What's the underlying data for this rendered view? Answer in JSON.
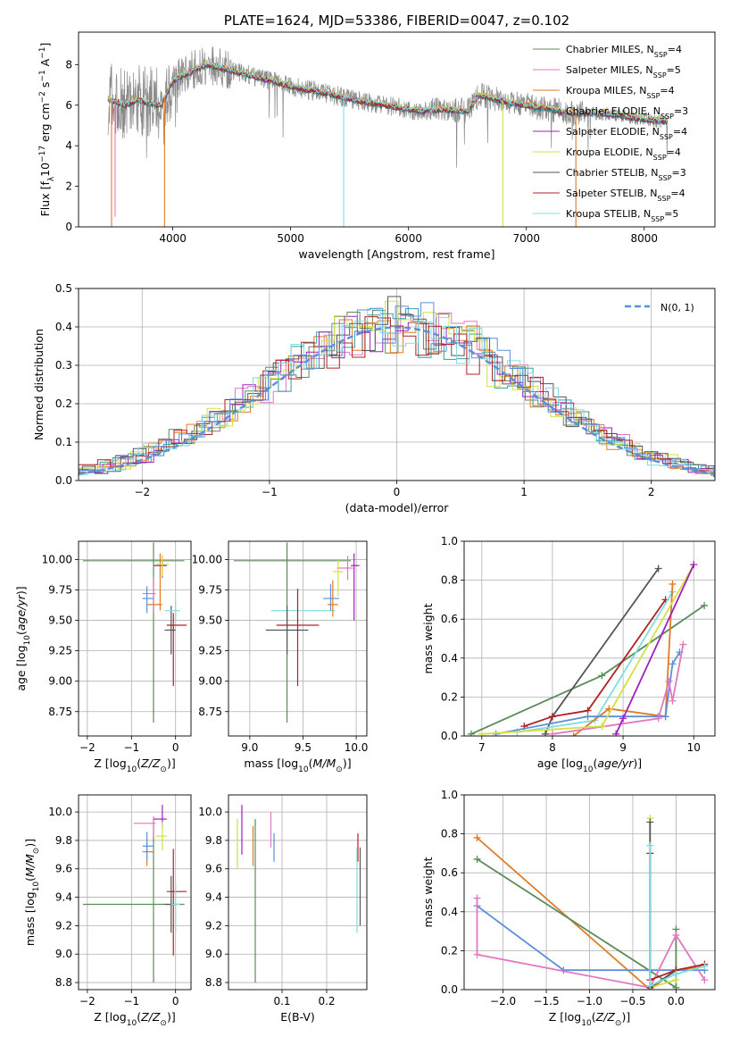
{
  "colors": {
    "Chabrier MILES": "#5b8c5a",
    "Salpeter MILES": "#e377c2",
    "Kroupa MILES": "#e07b24",
    "Chabrier ELODIE": "#2ca0a0",
    "Salpeter ELODIE": "#a020c0",
    "Kroupa ELODIE": "#d4e040",
    "Chabrier STELIB": "#555555",
    "Salpeter STELIB": "#b02020",
    "Kroupa STELIB": "#7fdde0",
    "blue": "#5b8fd9"
  },
  "chart_data": [
    {
      "id": "spectrum",
      "type": "line",
      "title": "PLATE=1624, MJD=53386, FIBERID=0047, z=0.102",
      "xlabel": "wavelength [Angstrom, rest frame]",
      "ylabel": "Flux [f_λ 10⁻¹⁷ erg cm⁻² s⁻¹ A⁻¹]",
      "xlim": [
        3200,
        8600
      ],
      "ylim": [
        0,
        9.6
      ],
      "xticks": [
        "4000",
        "5000",
        "6000",
        "7000",
        "8000"
      ],
      "yticks": [
        "0",
        "2",
        "4",
        "6",
        "8"
      ],
      "grid": false,
      "legend_position": "upper right",
      "legend": [
        {
          "label": "Chabrier MILES, N",
          "sub": "SSP",
          "tail": "=4",
          "color": "Chabrier MILES"
        },
        {
          "label": "Salpeter MILES, N",
          "sub": "SSP",
          "tail": "=5",
          "color": "Salpeter MILES"
        },
        {
          "label": "Kroupa MILES, N",
          "sub": "SSP",
          "tail": "=4",
          "color": "Kroupa MILES"
        },
        {
          "label": "Chabrier ELODIE, N",
          "sub": "SSP",
          "tail": "=3",
          "color": "Chabrier ELODIE"
        },
        {
          "label": "Salpeter ELODIE, N",
          "sub": "SSP",
          "tail": "=4",
          "color": "Salpeter ELODIE"
        },
        {
          "label": "Kroupa ELODIE, N",
          "sub": "SSP",
          "tail": "=4",
          "color": "Kroupa ELODIE"
        },
        {
          "label": "Chabrier STELIB, N",
          "sub": "SSP",
          "tail": "=3",
          "color": "Chabrier STELIB"
        },
        {
          "label": "Salpeter STELIB, N",
          "sub": "SSP",
          "tail": "=4",
          "color": "Salpeter STELIB"
        },
        {
          "label": "Kroupa STELIB, N",
          "sub": "SSP",
          "tail": "=5",
          "color": "Kroupa STELIB"
        }
      ],
      "continuum": {
        "x": [
          3450,
          3600,
          3700,
          3800,
          3900,
          4000,
          4100,
          4200,
          4300,
          4500,
          4700,
          4900,
          5100,
          5300,
          5500,
          5700,
          5900,
          6100,
          6300,
          6500,
          6600,
          6800,
          7000,
          7200,
          7400,
          7600,
          7800,
          8000,
          8200
        ],
        "y": [
          6.3,
          6.0,
          6.3,
          6.1,
          6.0,
          7.2,
          7.5,
          7.8,
          8.0,
          7.7,
          7.4,
          7.1,
          6.8,
          6.6,
          6.3,
          6.1,
          5.9,
          5.7,
          5.8,
          5.7,
          6.5,
          6.2,
          6.0,
          5.8,
          5.6,
          5.6,
          5.5,
          5.3,
          5.2
        ]
      }
    },
    {
      "id": "residuals",
      "type": "histogram",
      "xlabel": "(data-model)/error",
      "ylabel": "Normed distribution",
      "xlim": [
        -2.5,
        2.5
      ],
      "ylim": [
        0,
        0.5
      ],
      "xticks": [
        "−2",
        "−1",
        "0",
        "1",
        "2"
      ],
      "yticks": [
        "0.0",
        "0.1",
        "0.2",
        "0.3",
        "0.4",
        "0.5"
      ],
      "grid": true,
      "legend_position": "upper right",
      "reference_curve": {
        "label": "N(0, 1)",
        "type": "gaussian",
        "mean": 0,
        "sigma": 1
      }
    },
    {
      "id": "age_vs_Z",
      "type": "errorbar",
      "xlabel": "Z [log10(Z/Z⊙)]",
      "ylabel": "age [log10(age/yr)]",
      "xlim": [
        -2.2,
        0.35
      ],
      "ylim": [
        8.55,
        10.15
      ],
      "xticks": [
        "−2",
        "−1",
        "0"
      ],
      "yticks": [
        "8.75",
        "9.00",
        "9.25",
        "9.50",
        "9.75",
        "10.00"
      ],
      "grid": true,
      "points": [
        {
          "series": "Chabrier MILES",
          "x": -0.5,
          "xerr": [
            1.6,
            0.7
          ],
          "y": 9.99,
          "yerr": [
            1.33,
            0.15
          ]
        },
        {
          "series": "Salpeter MILES",
          "x": -0.5,
          "xerr": [
            0.25,
            0.05
          ],
          "y": 9.72,
          "yerr": [
            0.15,
            0.13
          ]
        },
        {
          "series": "Kroupa MILES",
          "x": -0.35,
          "xerr": [
            0.3,
            0.05
          ],
          "y": 9.63,
          "yerr": [
            0.05,
            0.42
          ]
        },
        {
          "series": "blue",
          "x": -0.65,
          "xerr": [
            0.1,
            0.15
          ],
          "y": 9.68,
          "yerr": [
            0.12,
            0.1
          ]
        },
        {
          "series": "Salpeter ELODIE",
          "x": -0.3,
          "xerr": [
            0.2,
            0.1
          ],
          "y": 9.95,
          "yerr": [
            0.1,
            0.08
          ]
        },
        {
          "series": "Kroupa ELODIE",
          "x": -0.3,
          "xerr": [
            0.15,
            0.15
          ],
          "y": 9.96,
          "yerr": [
            0.1,
            0.08
          ]
        },
        {
          "series": "Chabrier STELIB",
          "x": -0.1,
          "xerr": [
            0.15,
            0.1
          ],
          "y": 9.42,
          "yerr": [
            0.2,
            0.2
          ]
        },
        {
          "series": "Salpeter STELIB",
          "x": -0.05,
          "xerr": [
            0.15,
            0.3
          ],
          "y": 9.46,
          "yerr": [
            0.5,
            0.1
          ]
        },
        {
          "series": "Kroupa STELIB",
          "x": 0.0,
          "xerr": [
            0.25,
            0.1
          ],
          "y": 9.58,
          "yerr": [
            0.1,
            0.1
          ]
        }
      ]
    },
    {
      "id": "age_vs_mass",
      "type": "errorbar",
      "xlabel": "mass [log10(M/M⊙)]",
      "ylabel": "",
      "xlim": [
        8.8,
        10.1
      ],
      "ylim": [
        8.55,
        10.15
      ],
      "xticks": [
        "9.0",
        "9.5",
        "10.0"
      ],
      "yticks": [
        "8.75",
        "9.00",
        "9.25",
        "9.50",
        "9.75",
        "10.00"
      ],
      "grid": true,
      "points": [
        {
          "series": "Chabrier MILES",
          "x": 9.35,
          "xerr": [
            0.5,
            0.6
          ],
          "y": 9.99,
          "yerr": [
            1.33,
            0.15
          ]
        },
        {
          "series": "Kroupa STELIB",
          "x": 9.45,
          "xerr": [
            0.25,
            0.35
          ],
          "y": 9.58,
          "yerr": [
            0.1,
            0.1
          ]
        },
        {
          "series": "Chabrier STELIB",
          "x": 9.35,
          "xerr": [
            0.2,
            0.2
          ],
          "y": 9.42,
          "yerr": [
            0.2,
            0.2
          ]
        },
        {
          "series": "Salpeter STELIB",
          "x": 9.45,
          "xerr": [
            0.2,
            0.2
          ],
          "y": 9.46,
          "yerr": [
            0.5,
            0.3
          ]
        },
        {
          "series": "blue",
          "x": 9.76,
          "xerr": [
            0.07,
            0.08
          ],
          "y": 9.68,
          "yerr": [
            0.1,
            0.12
          ]
        },
        {
          "series": "Kroupa MILES",
          "x": 9.78,
          "xerr": [
            0.05,
            0.05
          ],
          "y": 9.63,
          "yerr": [
            0.1,
            0.2
          ]
        },
        {
          "series": "Salpeter MILES",
          "x": 9.92,
          "xerr": [
            0.1,
            0.05
          ],
          "y": 9.93,
          "yerr": [
            0.1,
            0.1
          ]
        },
        {
          "series": "Kroupa ELODIE",
          "x": 9.83,
          "xerr": [
            0.05,
            0.05
          ],
          "y": 9.9,
          "yerr": [
            0.2,
            0.1
          ]
        },
        {
          "series": "Salpeter ELODIE",
          "x": 9.98,
          "xerr": [
            0.03,
            0.05
          ],
          "y": 9.95,
          "yerr": [
            0.45,
            0.1
          ]
        }
      ]
    },
    {
      "id": "weight_vs_age",
      "type": "line",
      "xlabel": "age [log10(age/yr)]",
      "ylabel": "mass weight",
      "xlim": [
        6.75,
        10.3
      ],
      "ylim": [
        0,
        1.0
      ],
      "xticks": [
        "7",
        "8",
        "9",
        "10"
      ],
      "yticks": [
        "0.0",
        "0.2",
        "0.4",
        "0.6",
        "0.8",
        "1.0"
      ],
      "grid": true,
      "series": [
        {
          "name": "Chabrier MILES",
          "x": [
            6.85,
            8.7,
            10.15
          ],
          "y": [
            0.01,
            0.31,
            0.67
          ]
        },
        {
          "name": "Chabrier STELIB",
          "x": [
            7.9,
            8.0,
            9.5
          ],
          "y": [
            0.01,
            0.1,
            0.86
          ]
        },
        {
          "name": "Salpeter STELIB",
          "x": [
            7.6,
            8.0,
            8.5,
            9.6
          ],
          "y": [
            0.05,
            0.1,
            0.13,
            0.7
          ]
        },
        {
          "name": "Kroupa STELIB",
          "x": [
            7.5,
            8.6,
            9.7
          ],
          "y": [
            0.02,
            0.08,
            0.74
          ]
        },
        {
          "name": "Kroupa MILES",
          "x": [
            8.3,
            8.8,
            9.6,
            9.7
          ],
          "y": [
            0.0,
            0.14,
            0.1,
            0.78
          ]
        },
        {
          "name": "blue",
          "x": [
            7.2,
            8.5,
            9.5,
            9.6,
            9.7,
            9.8
          ],
          "y": [
            0.01,
            0.1,
            0.1,
            0.1,
            0.37,
            0.43
          ]
        },
        {
          "name": "Salpeter MILES",
          "x": [
            8.0,
            9.5,
            9.65,
            9.7,
            9.85
          ],
          "y": [
            0.01,
            0.09,
            0.28,
            0.18,
            0.47
          ]
        },
        {
          "name": "Kroupa ELODIE",
          "x": [
            7.0,
            8.7,
            10.0
          ],
          "y": [
            0.01,
            0.05,
            0.88
          ]
        },
        {
          "name": "Salpeter ELODIE",
          "x": [
            8.9,
            9.0,
            10.0
          ],
          "y": [
            0.01,
            0.09,
            0.88
          ]
        }
      ]
    },
    {
      "id": "mass_vs_Z",
      "type": "errorbar",
      "xlabel": "Z [log10(Z/Z⊙)]",
      "ylabel": "mass [log10(M/M⊙)]",
      "xlim": [
        -2.2,
        0.35
      ],
      "ylim": [
        8.75,
        10.12
      ],
      "xticks": [
        "−2",
        "−1",
        "0"
      ],
      "yticks": [
        "8.8",
        "9.0",
        "9.2",
        "9.4",
        "9.6",
        "9.8",
        "10.0"
      ],
      "grid": true,
      "points": [
        {
          "series": "Chabrier MILES",
          "x": -0.5,
          "xerr": [
            1.6,
            0.7
          ],
          "y": 9.35,
          "yerr": [
            0.55,
            0.6
          ]
        },
        {
          "series": "Salpeter MILES",
          "x": -0.5,
          "xerr": [
            0.45,
            0.05
          ],
          "y": 9.92,
          "yerr": [
            0.1,
            0.05
          ]
        },
        {
          "series": "Kroupa MILES",
          "x": -0.65,
          "xerr": [
            0.1,
            0.15
          ],
          "y": 9.72,
          "yerr": [
            0.1,
            0.1
          ]
        },
        {
          "series": "blue",
          "x": -0.65,
          "xerr": [
            0.1,
            0.15
          ],
          "y": 9.76,
          "yerr": [
            0.1,
            0.1
          ]
        },
        {
          "series": "Salpeter ELODIE",
          "x": -0.3,
          "xerr": [
            0.2,
            0.1
          ],
          "y": 9.95,
          "yerr": [
            0.05,
            0.1
          ]
        },
        {
          "series": "Kroupa ELODIE",
          "x": -0.3,
          "xerr": [
            0.15,
            0.1
          ],
          "y": 9.83,
          "yerr": [
            0.1,
            0.1
          ]
        },
        {
          "series": "Chabrier STELIB",
          "x": -0.1,
          "xerr": [
            0.15,
            0.1
          ],
          "y": 9.35,
          "yerr": [
            0.2,
            0.2
          ]
        },
        {
          "series": "Salpeter STELIB",
          "x": -0.05,
          "xerr": [
            0.15,
            0.3
          ],
          "y": 9.44,
          "yerr": [
            0.45,
            0.3
          ]
        },
        {
          "series": "Kroupa STELIB",
          "x": 0.0,
          "xerr": [
            0.1,
            0.1
          ],
          "y": 9.35,
          "yerr": [
            0.2,
            0.15
          ]
        }
      ]
    },
    {
      "id": "mass_vs_ebv",
      "type": "errorbar",
      "xlabel": "E(B-V)",
      "ylabel": "",
      "xlim": [
        -0.02,
        0.29
      ],
      "ylim": [
        8.75,
        10.12
      ],
      "xticks": [
        "0.1",
        "0.2"
      ],
      "yticks": [
        "8.8",
        "9.0",
        "9.2",
        "9.4",
        "9.6",
        "9.8",
        "10.0"
      ],
      "grid": true,
      "points": [
        {
          "series": "Kroupa ELODIE",
          "x": 0.0,
          "y": 9.75,
          "yerr": [
            0.15,
            0.2
          ]
        },
        {
          "series": "Salpeter ELODIE",
          "x": 0.01,
          "y": 9.8,
          "yerr": [
            0.1,
            0.25
          ]
        },
        {
          "series": "Kroupa MILES",
          "x": 0.035,
          "y": 9.72,
          "yerr": [
            0.1,
            0.18
          ]
        },
        {
          "series": "Chabrier MILES",
          "x": 0.04,
          "y": 9.35,
          "yerr": [
            0.55,
            0.6
          ]
        },
        {
          "series": "Salpeter MILES",
          "x": 0.075,
          "y": 9.85,
          "yerr": [
            0.1,
            0.15
          ]
        },
        {
          "series": "blue",
          "x": 0.082,
          "y": 9.75,
          "yerr": [
            0.1,
            0.1
          ]
        },
        {
          "series": "Salpeter STELIB",
          "x": 0.27,
          "y": 9.75,
          "yerr": [
            0.1,
            0.1
          ]
        },
        {
          "series": "Chabrier STELIB",
          "x": 0.275,
          "y": 9.45,
          "yerr": [
            0.25,
            0.3
          ]
        },
        {
          "series": "Kroupa STELIB",
          "x": 0.268,
          "y": 9.35,
          "yerr": [
            0.2,
            0.4
          ]
        }
      ]
    },
    {
      "id": "weight_vs_Z",
      "type": "line",
      "xlabel": "Z [log10(Z/Z⊙)]",
      "ylabel": "mass weight",
      "xlim": [
        -2.45,
        0.45
      ],
      "ylim": [
        0,
        1.0
      ],
      "xticks": [
        "−2.0",
        "−1.5",
        "−1.0",
        "−0.5",
        "0.0"
      ],
      "yticks": [
        "0.0",
        "0.2",
        "0.4",
        "0.6",
        "0.8",
        "1.0"
      ],
      "grid": true,
      "series": [
        {
          "name": "Kroupa MILES",
          "x": [
            -2.3,
            -0.3,
            0.0,
            0.33
          ],
          "y": [
            0.78,
            0.0,
            0.1,
            0.12
          ]
        },
        {
          "name": "Chabrier MILES",
          "x": [
            -2.3,
            0.0,
            0.0
          ],
          "y": [
            0.67,
            0.01,
            0.31
          ]
        },
        {
          "name": "blue",
          "x": [
            -2.3,
            -1.3,
            0.0,
            0.33
          ],
          "y": [
            0.43,
            0.1,
            0.1,
            0.1
          ]
        },
        {
          "name": "Salpeter MILES",
          "x": [
            -2.3,
            -2.3,
            -0.3,
            0.0,
            0.33
          ],
          "y": [
            0.47,
            0.18,
            0.01,
            0.28,
            0.05
          ]
        },
        {
          "name": "Kroupa ELODIE",
          "x": [
            -0.3,
            -0.3,
            0.0
          ],
          "y": [
            0.88,
            0.01,
            0.05
          ]
        },
        {
          "name": "Chabrier STELIB",
          "x": [
            -0.3,
            -0.3,
            0.0
          ],
          "y": [
            0.86,
            0.01,
            0.1
          ]
        },
        {
          "name": "Salpeter STELIB",
          "x": [
            -0.3,
            -0.3,
            0.0,
            0.33
          ],
          "y": [
            0.7,
            0.05,
            0.1,
            0.13
          ]
        },
        {
          "name": "Kroupa STELIB",
          "x": [
            -0.3,
            -0.3,
            0.0,
            0.33
          ],
          "y": [
            0.74,
            0.02,
            0.08,
            0.12
          ]
        }
      ]
    }
  ]
}
